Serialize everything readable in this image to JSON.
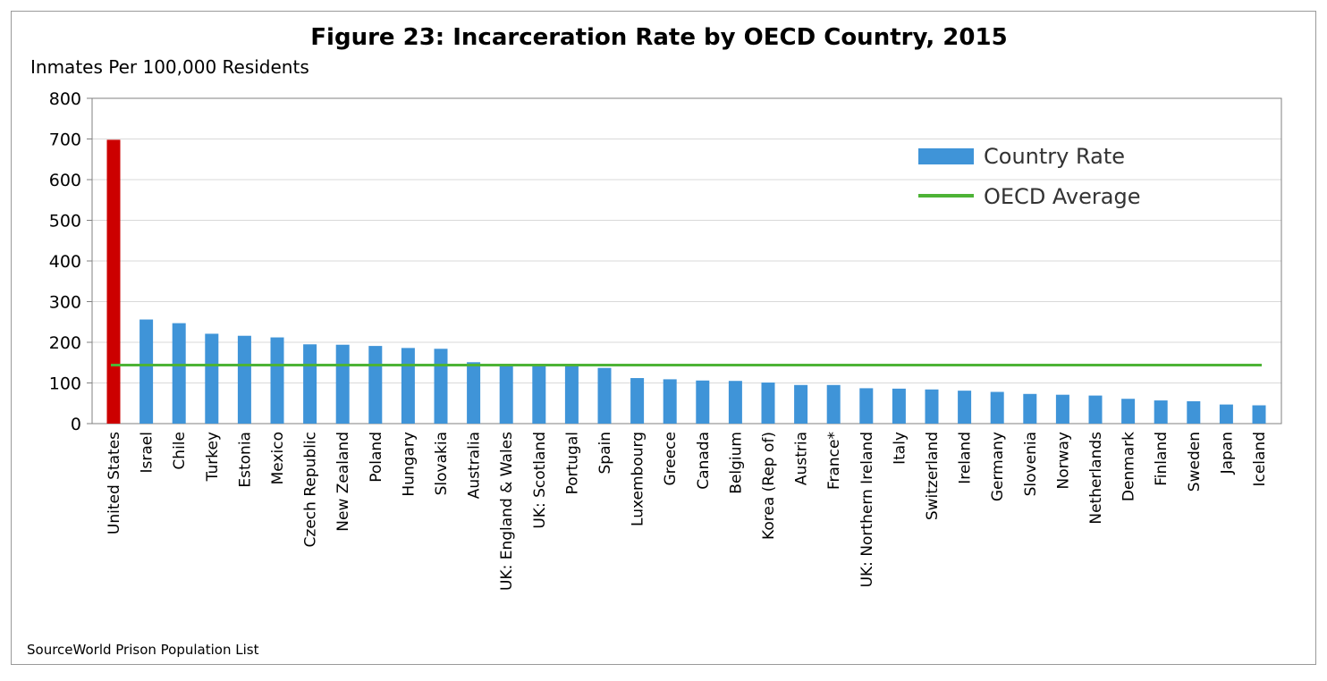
{
  "chart_data": {
    "type": "bar",
    "title": "Figure 23: Incarceration Rate by OECD Country, 2015",
    "ylabel": "Inmates Per 100,000 Residents",
    "xlabel": "",
    "ylim": [
      0,
      800
    ],
    "yticks": [
      0,
      100,
      200,
      300,
      400,
      500,
      600,
      700,
      800
    ],
    "grid": true,
    "legend_position": "top-right",
    "categories": [
      "United States",
      "Israel",
      "Chile",
      "Turkey",
      "Estonia",
      "Mexico",
      "Czech Republic",
      "New Zealand",
      "Poland",
      "Hungary",
      "Slovakia",
      "Australia",
      "UK: England & Wales",
      "UK: Scotland",
      "Portugal",
      "Spain",
      "Luxembourg",
      "Greece",
      "Canada",
      "Belgium",
      "Korea (Rep of)",
      "Austria",
      "France*",
      "UK: Northern Ireland",
      "Italy",
      "Switzerland",
      "Ireland",
      "Germany",
      "Slovenia",
      "Norway",
      "Netherlands",
      "Denmark",
      "Finland",
      "Sweden",
      "Japan",
      "Iceland"
    ],
    "series": [
      {
        "name": "Country Rate",
        "color": "#3f94d8",
        "values": [
          698,
          256,
          247,
          221,
          216,
          212,
          195,
          194,
          191,
          186,
          184,
          151,
          146,
          143,
          141,
          137,
          112,
          109,
          106,
          105,
          101,
          95,
          95,
          87,
          86,
          84,
          81,
          78,
          73,
          71,
          69,
          61,
          57,
          55,
          47,
          45
        ]
      },
      {
        "name": "OECD Average",
        "type": "line",
        "color": "#4db336",
        "value": 144
      }
    ],
    "highlight": {
      "category": "United States",
      "color": "#cc0000"
    },
    "source": "SourceWorld Prison Population List"
  }
}
